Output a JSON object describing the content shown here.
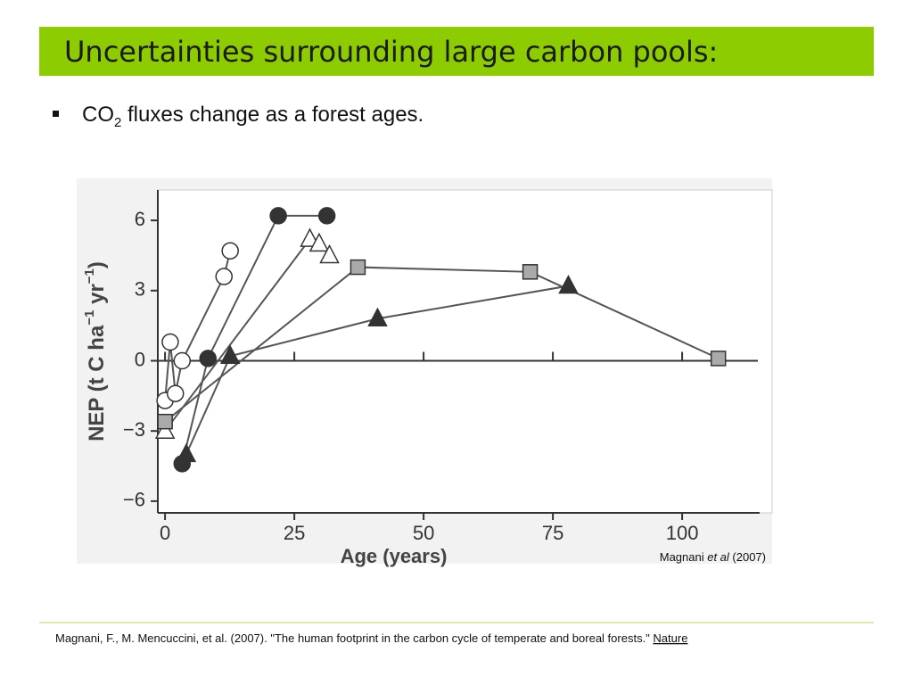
{
  "title": "Uncertainties surrounding large carbon pools:",
  "bullet": {
    "before": "CO",
    "subscript": "2",
    "after": " fluxes change as a forest ages."
  },
  "citation": {
    "author": "Magnani ",
    "etal": "et al",
    "year": " (2007)"
  },
  "footer": {
    "text": "Magnani, F., M. Mencuccini, et al. (2007). \"The human footprint in the carbon cycle of temperate and boreal forests.\" ",
    "link": "Nature"
  },
  "chart_data": {
    "type": "line",
    "xlabel": "Age (years)",
    "ylabel": [
      "NEP (t C ha",
      "−1",
      " yr",
      "−1",
      ")"
    ],
    "xlim": [
      -1.4,
      117.4
    ],
    "ylim": [
      -6.5,
      7.3
    ],
    "xticks": [
      0,
      25,
      50,
      75,
      100
    ],
    "yticks": [
      {
        "value": -6,
        "label": "−6"
      },
      {
        "value": -3,
        "label": "−3"
      },
      0,
      3,
      6
    ],
    "line_color": "#555555",
    "series": [
      {
        "marker": "circle",
        "color": "#ffffff",
        "x": [
          0,
          1,
          2,
          3.3,
          11.4,
          12.6
        ],
        "values": [
          -1.7,
          0.8,
          -1.4,
          0,
          3.6,
          4.7
        ]
      },
      {
        "marker": "circle",
        "color": "#333333",
        "x": [
          3.3,
          8.3,
          21.9,
          31.3
        ],
        "values": [
          -4.4,
          0.1,
          6.2,
          6.2
        ]
      },
      {
        "marker": "triangle",
        "color": "#ffffff",
        "x": [
          0,
          28,
          29.8,
          31.8
        ],
        "values": [
          -3.0,
          5.2,
          5.0,
          4.5
        ]
      },
      {
        "marker": "triangle",
        "color": "#333333",
        "x": [
          4.1,
          12.6,
          41.1,
          78
        ],
        "values": [
          -4.0,
          0.2,
          1.8,
          3.2
        ]
      },
      {
        "marker": "square",
        "color": "#aaaaaa",
        "x": [
          0,
          37.3,
          70.6,
          107
        ],
        "values": [
          -2.6,
          4.0,
          3.8,
          0.1
        ]
      }
    ]
  }
}
